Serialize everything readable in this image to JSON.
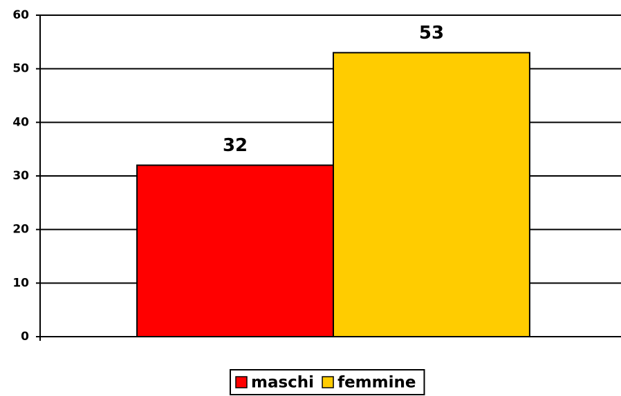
{
  "chart_data": {
    "type": "bar",
    "categories": [
      null
    ],
    "series": [
      {
        "name": "maschi",
        "color": "#ff0000",
        "values": [
          32
        ]
      },
      {
        "name": "femmine",
        "color": "#ffcc00",
        "values": [
          53
        ]
      }
    ],
    "ylim": [
      0,
      60
    ],
    "yticks": [
      0,
      10,
      20,
      30,
      40,
      50,
      60
    ],
    "grid": true,
    "legend": "bottom"
  }
}
